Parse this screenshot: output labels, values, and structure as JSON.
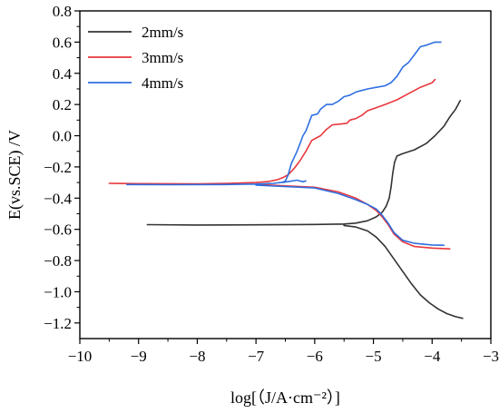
{
  "chart_data": {
    "type": "line",
    "xlabel": "log[（J/A·cm⁻²）]",
    "ylabel": "E(vs.SCE) /V",
    "xlim": [
      -10,
      -3
    ],
    "ylim": [
      -1.3,
      0.8
    ],
    "x_ticks": [
      "−10",
      "−9",
      "−8",
      "−7",
      "−6",
      "−5",
      "−4",
      "−3"
    ],
    "y_ticks": [
      "−1.2",
      "−1.0",
      "−0.8",
      "−0.6",
      "−0.4",
      "−0.2",
      "0.0",
      "0.2",
      "0.4",
      "0.6",
      "0.8"
    ],
    "legend_position": "top-left",
    "grid": false,
    "series": [
      {
        "name": "2mm/s",
        "color": "#333333",
        "points": [
          [
            -8.85,
            -0.57
          ],
          [
            -8.0,
            -0.572
          ],
          [
            -7.0,
            -0.571
          ],
          [
            -6.0,
            -0.569
          ],
          [
            -5.5,
            -0.566
          ],
          [
            -5.3,
            -0.56
          ],
          [
            -5.1,
            -0.545
          ],
          [
            -4.95,
            -0.52
          ],
          [
            -4.85,
            -0.49
          ],
          [
            -4.78,
            -0.45
          ],
          [
            -4.73,
            -0.4
          ],
          [
            -4.7,
            -0.33
          ],
          [
            -4.67,
            -0.24
          ],
          [
            -4.64,
            -0.17
          ],
          [
            -4.6,
            -0.13
          ],
          [
            -4.5,
            -0.115
          ],
          [
            -4.3,
            -0.09
          ],
          [
            -4.1,
            -0.05
          ],
          [
            -3.95,
            0.0
          ],
          [
            -3.8,
            0.06
          ],
          [
            -3.7,
            0.12
          ],
          [
            -3.6,
            0.17
          ],
          [
            -3.52,
            0.225
          ],
          [
            null,
            null
          ],
          [
            -5.5,
            -0.575
          ],
          [
            -5.3,
            -0.585
          ],
          [
            -5.1,
            -0.61
          ],
          [
            -4.95,
            -0.65
          ],
          [
            -4.8,
            -0.71
          ],
          [
            -4.65,
            -0.79
          ],
          [
            -4.5,
            -0.87
          ],
          [
            -4.35,
            -0.95
          ],
          [
            -4.2,
            -1.02
          ],
          [
            -4.05,
            -1.07
          ],
          [
            -3.9,
            -1.11
          ],
          [
            -3.75,
            -1.14
          ],
          [
            -3.6,
            -1.16
          ],
          [
            -3.48,
            -1.17
          ]
        ]
      },
      {
        "name": "3mm/s",
        "color": "#e8383d",
        "points": [
          [
            -9.5,
            -0.305
          ],
          [
            -9.0,
            -0.307
          ],
          [
            -8.0,
            -0.308
          ],
          [
            -7.5,
            -0.306
          ],
          [
            -7.0,
            -0.3
          ],
          [
            -6.8,
            -0.294
          ],
          [
            -6.65,
            -0.283
          ],
          [
            -6.55,
            -0.27
          ],
          [
            -6.45,
            -0.25
          ],
          [
            -6.35,
            -0.21
          ],
          [
            -6.25,
            -0.16
          ],
          [
            -6.15,
            -0.1
          ],
          [
            -6.05,
            -0.03
          ],
          [
            -5.9,
            0.0
          ],
          [
            -5.8,
            0.04
          ],
          [
            -5.7,
            0.07
          ],
          [
            -5.55,
            0.075
          ],
          [
            -5.45,
            0.08
          ],
          [
            -5.4,
            0.1
          ],
          [
            -5.3,
            0.11
          ],
          [
            -5.2,
            0.13
          ],
          [
            -5.1,
            0.16
          ],
          [
            -4.95,
            0.18
          ],
          [
            -4.8,
            0.2
          ],
          [
            -4.6,
            0.23
          ],
          [
            -4.4,
            0.27
          ],
          [
            -4.2,
            0.31
          ],
          [
            -4.0,
            0.34
          ],
          [
            -3.95,
            0.36
          ],
          [
            null,
            null
          ],
          [
            -7.0,
            -0.312
          ],
          [
            -6.0,
            -0.33
          ],
          [
            -5.6,
            -0.36
          ],
          [
            -5.3,
            -0.4
          ],
          [
            -5.1,
            -0.44
          ],
          [
            -4.95,
            -0.48
          ],
          [
            -4.85,
            -0.52
          ],
          [
            -4.75,
            -0.57
          ],
          [
            -4.65,
            -0.63
          ],
          [
            -4.5,
            -0.68
          ],
          [
            -4.3,
            -0.71
          ],
          [
            -4.0,
            -0.72
          ],
          [
            -3.7,
            -0.725
          ]
        ]
      },
      {
        "name": "4mm/s",
        "color": "#2e6fe0",
        "points": [
          [
            -9.2,
            -0.313
          ],
          [
            -8.5,
            -0.314
          ],
          [
            -7.5,
            -0.313
          ],
          [
            -7.0,
            -0.31
          ],
          [
            -6.7,
            -0.305
          ],
          [
            -6.55,
            -0.298
          ],
          [
            -6.5,
            -0.29
          ],
          [
            -6.45,
            -0.25
          ],
          [
            -6.4,
            -0.18
          ],
          [
            -6.35,
            -0.14
          ],
          [
            -6.3,
            -0.1
          ],
          [
            -6.25,
            -0.05
          ],
          [
            -6.2,
            0.0
          ],
          [
            -6.15,
            0.03
          ],
          [
            -6.1,
            0.08
          ],
          [
            -6.05,
            0.13
          ],
          [
            -5.95,
            0.14
          ],
          [
            -5.9,
            0.17
          ],
          [
            -5.8,
            0.2
          ],
          [
            -5.7,
            0.2
          ],
          [
            -5.6,
            0.22
          ],
          [
            -5.5,
            0.25
          ],
          [
            -5.4,
            0.26
          ],
          [
            -5.3,
            0.28
          ],
          [
            -5.2,
            0.29
          ],
          [
            -5.1,
            0.3
          ],
          [
            -4.95,
            0.31
          ],
          [
            -4.8,
            0.32
          ],
          [
            -4.7,
            0.34
          ],
          [
            -4.6,
            0.38
          ],
          [
            -4.5,
            0.44
          ],
          [
            -4.4,
            0.47
          ],
          [
            -4.3,
            0.52
          ],
          [
            -4.2,
            0.57
          ],
          [
            -4.1,
            0.58
          ],
          [
            -3.95,
            0.6
          ],
          [
            -3.85,
            0.6
          ],
          [
            null,
            null
          ],
          [
            -6.55,
            -0.3
          ],
          [
            -6.3,
            -0.285
          ],
          [
            -6.2,
            -0.295
          ],
          [
            -6.15,
            -0.29
          ],
          [
            null,
            null
          ],
          [
            -7.0,
            -0.317
          ],
          [
            -6.0,
            -0.335
          ],
          [
            -5.6,
            -0.37
          ],
          [
            -5.3,
            -0.41
          ],
          [
            -5.1,
            -0.44
          ],
          [
            -4.95,
            -0.47
          ],
          [
            -4.85,
            -0.51
          ],
          [
            -4.75,
            -0.56
          ],
          [
            -4.65,
            -0.62
          ],
          [
            -4.5,
            -0.67
          ],
          [
            -4.3,
            -0.69
          ],
          [
            -4.0,
            -0.7
          ],
          [
            -3.8,
            -0.702
          ]
        ]
      }
    ]
  }
}
